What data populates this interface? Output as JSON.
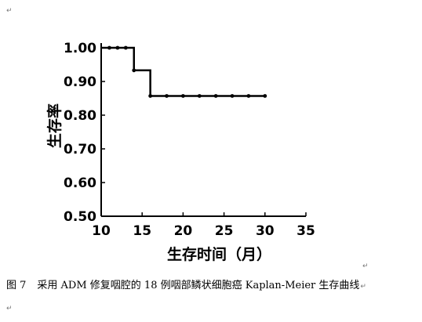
{
  "chart_data": {
    "type": "line",
    "step": true,
    "xlabel": "生存时间（月）",
    "ylabel": "生存率",
    "xlim": [
      10,
      35
    ],
    "ylim": [
      0.5,
      1.0
    ],
    "x_ticks": [
      "10",
      "15",
      "20",
      "25",
      "30",
      "35"
    ],
    "y_ticks": [
      "0.50",
      "0.60",
      "0.70",
      "0.80",
      "0.90",
      "1.00"
    ],
    "grid": false,
    "series": [
      {
        "color": "#000000",
        "steps": [
          {
            "x": 10,
            "y": 1.0
          },
          {
            "x": 14,
            "y": 0.933
          },
          {
            "x": 16,
            "y": 0.857
          },
          {
            "x": 30,
            "y": 0.857
          }
        ],
        "censored": [
          {
            "x": 11,
            "y": 1.0
          },
          {
            "x": 12,
            "y": 1.0
          },
          {
            "x": 13,
            "y": 1.0
          },
          {
            "x": 14,
            "y": 0.933
          },
          {
            "x": 16,
            "y": 0.857
          },
          {
            "x": 18,
            "y": 0.857
          },
          {
            "x": 20,
            "y": 0.857
          },
          {
            "x": 22,
            "y": 0.857
          },
          {
            "x": 24,
            "y": 0.857
          },
          {
            "x": 26,
            "y": 0.857
          },
          {
            "x": 28,
            "y": 0.857
          },
          {
            "x": 30,
            "y": 0.857
          }
        ]
      }
    ]
  },
  "caption": {
    "figure_label": "图 7",
    "text": "采用 ADM 修复咽腔的 18 例咽部鳞状细胞癌 Kaplan-Meier 生存曲线"
  },
  "para_mark": "↵"
}
